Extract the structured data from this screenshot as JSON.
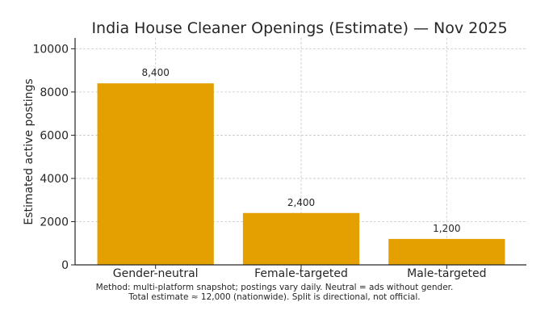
{
  "chart_data": {
    "type": "bar",
    "title": "India House Cleaner Openings (Estimate) — Nov 2025",
    "xlabel": "",
    "ylabel": "Estimated active postings",
    "categories": [
      "Gender-neutral",
      "Female-targeted",
      "Male-targeted"
    ],
    "values": [
      8400,
      2400,
      1200
    ],
    "data_labels": [
      "8,400",
      "2,400",
      "1,200"
    ],
    "ylim": [
      0,
      10500
    ],
    "yticks": [
      0,
      2000,
      4000,
      6000,
      8000,
      10000
    ],
    "ytick_labels": [
      "0",
      "2000",
      "4000",
      "6000",
      "8000",
      "10000"
    ],
    "grid": true,
    "bar_color": "#e3a000",
    "footnote": [
      "Method: multi-platform snapshot; postings vary daily. Neutral = ads without gender.",
      "Total estimate ≈ 12,000 (nationwide). Split is directional, not official."
    ]
  }
}
